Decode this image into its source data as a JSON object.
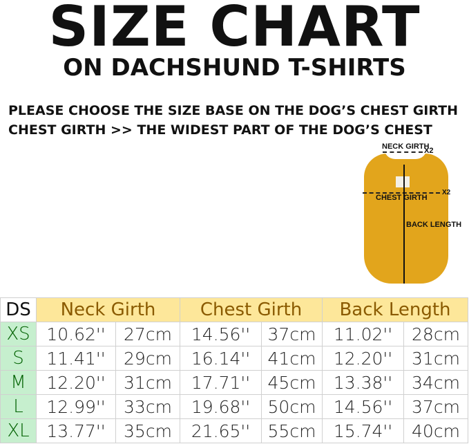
{
  "header": {
    "title": "SIZE CHART",
    "subtitle": "ON DACHSHUND T-SHIRTS"
  },
  "notes": [
    "PLEASE CHOOSE THE SIZE BASE ON THE DOG’S CHEST GIRTH",
    "CHEST GIRTH >> THE WIDEST PART OF THE DOG’S CHEST"
  ],
  "diagram": {
    "neck": "NECK GIRTH",
    "neck_x": "X2",
    "chest": "CHEST GIRTH",
    "chest_x": "X2",
    "back": "BACK LENGTH",
    "shirt_color": "#e2a51c"
  },
  "table": {
    "headers": [
      "DS",
      "Neck Girth",
      "Chest Girth",
      "Back Length"
    ],
    "rows": [
      [
        "XS",
        "10.62''",
        "27cm",
        "14.56''",
        "37cm",
        "11.02''",
        "28cm"
      ],
      [
        "S",
        "11.41''",
        "29cm",
        "16.14''",
        "41cm",
        "12.20''",
        "31cm"
      ],
      [
        "M",
        "12.20''",
        "31cm",
        "17.71''",
        "45cm",
        "13.38''",
        "34cm"
      ],
      [
        "L",
        "12.99''",
        "33cm",
        "19.68''",
        "50cm",
        "14.56''",
        "37cm"
      ],
      [
        "XL",
        "13.77''",
        "35cm",
        "21.65''",
        "55cm",
        "15.74''",
        "40cm"
      ]
    ]
  }
}
